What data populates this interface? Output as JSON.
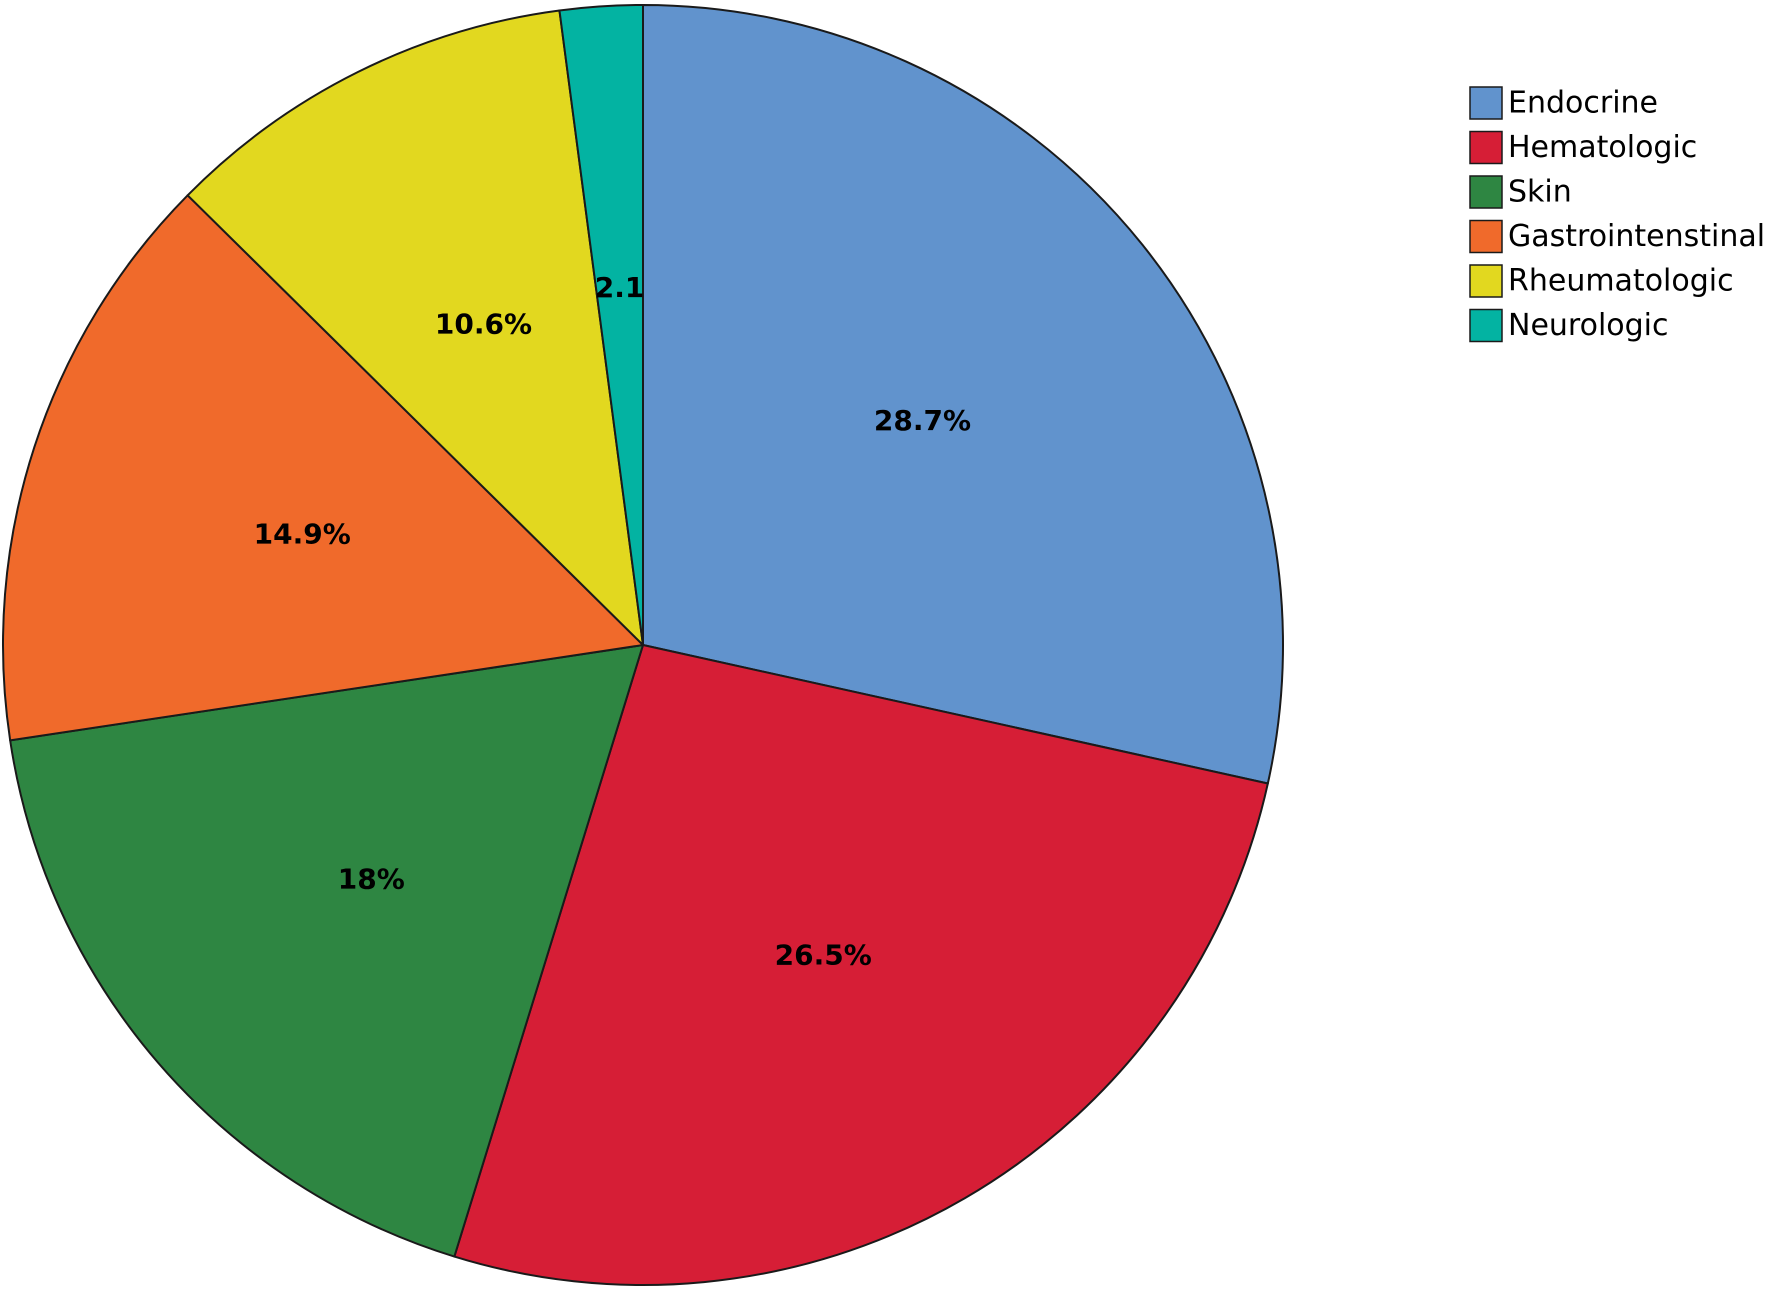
{
  "chart_data": {
    "type": "pie",
    "title": "",
    "start_angle_deg": 0,
    "direction": "clockwise",
    "legend_position": "top-right",
    "slices": [
      {
        "name": "Endocrine",
        "value": 28.7,
        "label": "28.7%",
        "color": "#6193CD"
      },
      {
        "name": "Hematologic",
        "value": 26.5,
        "label": "26.5%",
        "color": "#D61E36"
      },
      {
        "name": "Skin",
        "value": 18.0,
        "label": "18%",
        "color": "#2E8642"
      },
      {
        "name": "Gastrointenstinal",
        "value": 14.9,
        "label": "14.9%",
        "color": "#F06A2B"
      },
      {
        "name": "Rheumatologic",
        "value": 10.6,
        "label": "10.6%",
        "color": "#E2D81F"
      },
      {
        "name": "Neurologic",
        "value": 2.1,
        "label": "2.1",
        "color": "#03B3A2"
      }
    ]
  }
}
